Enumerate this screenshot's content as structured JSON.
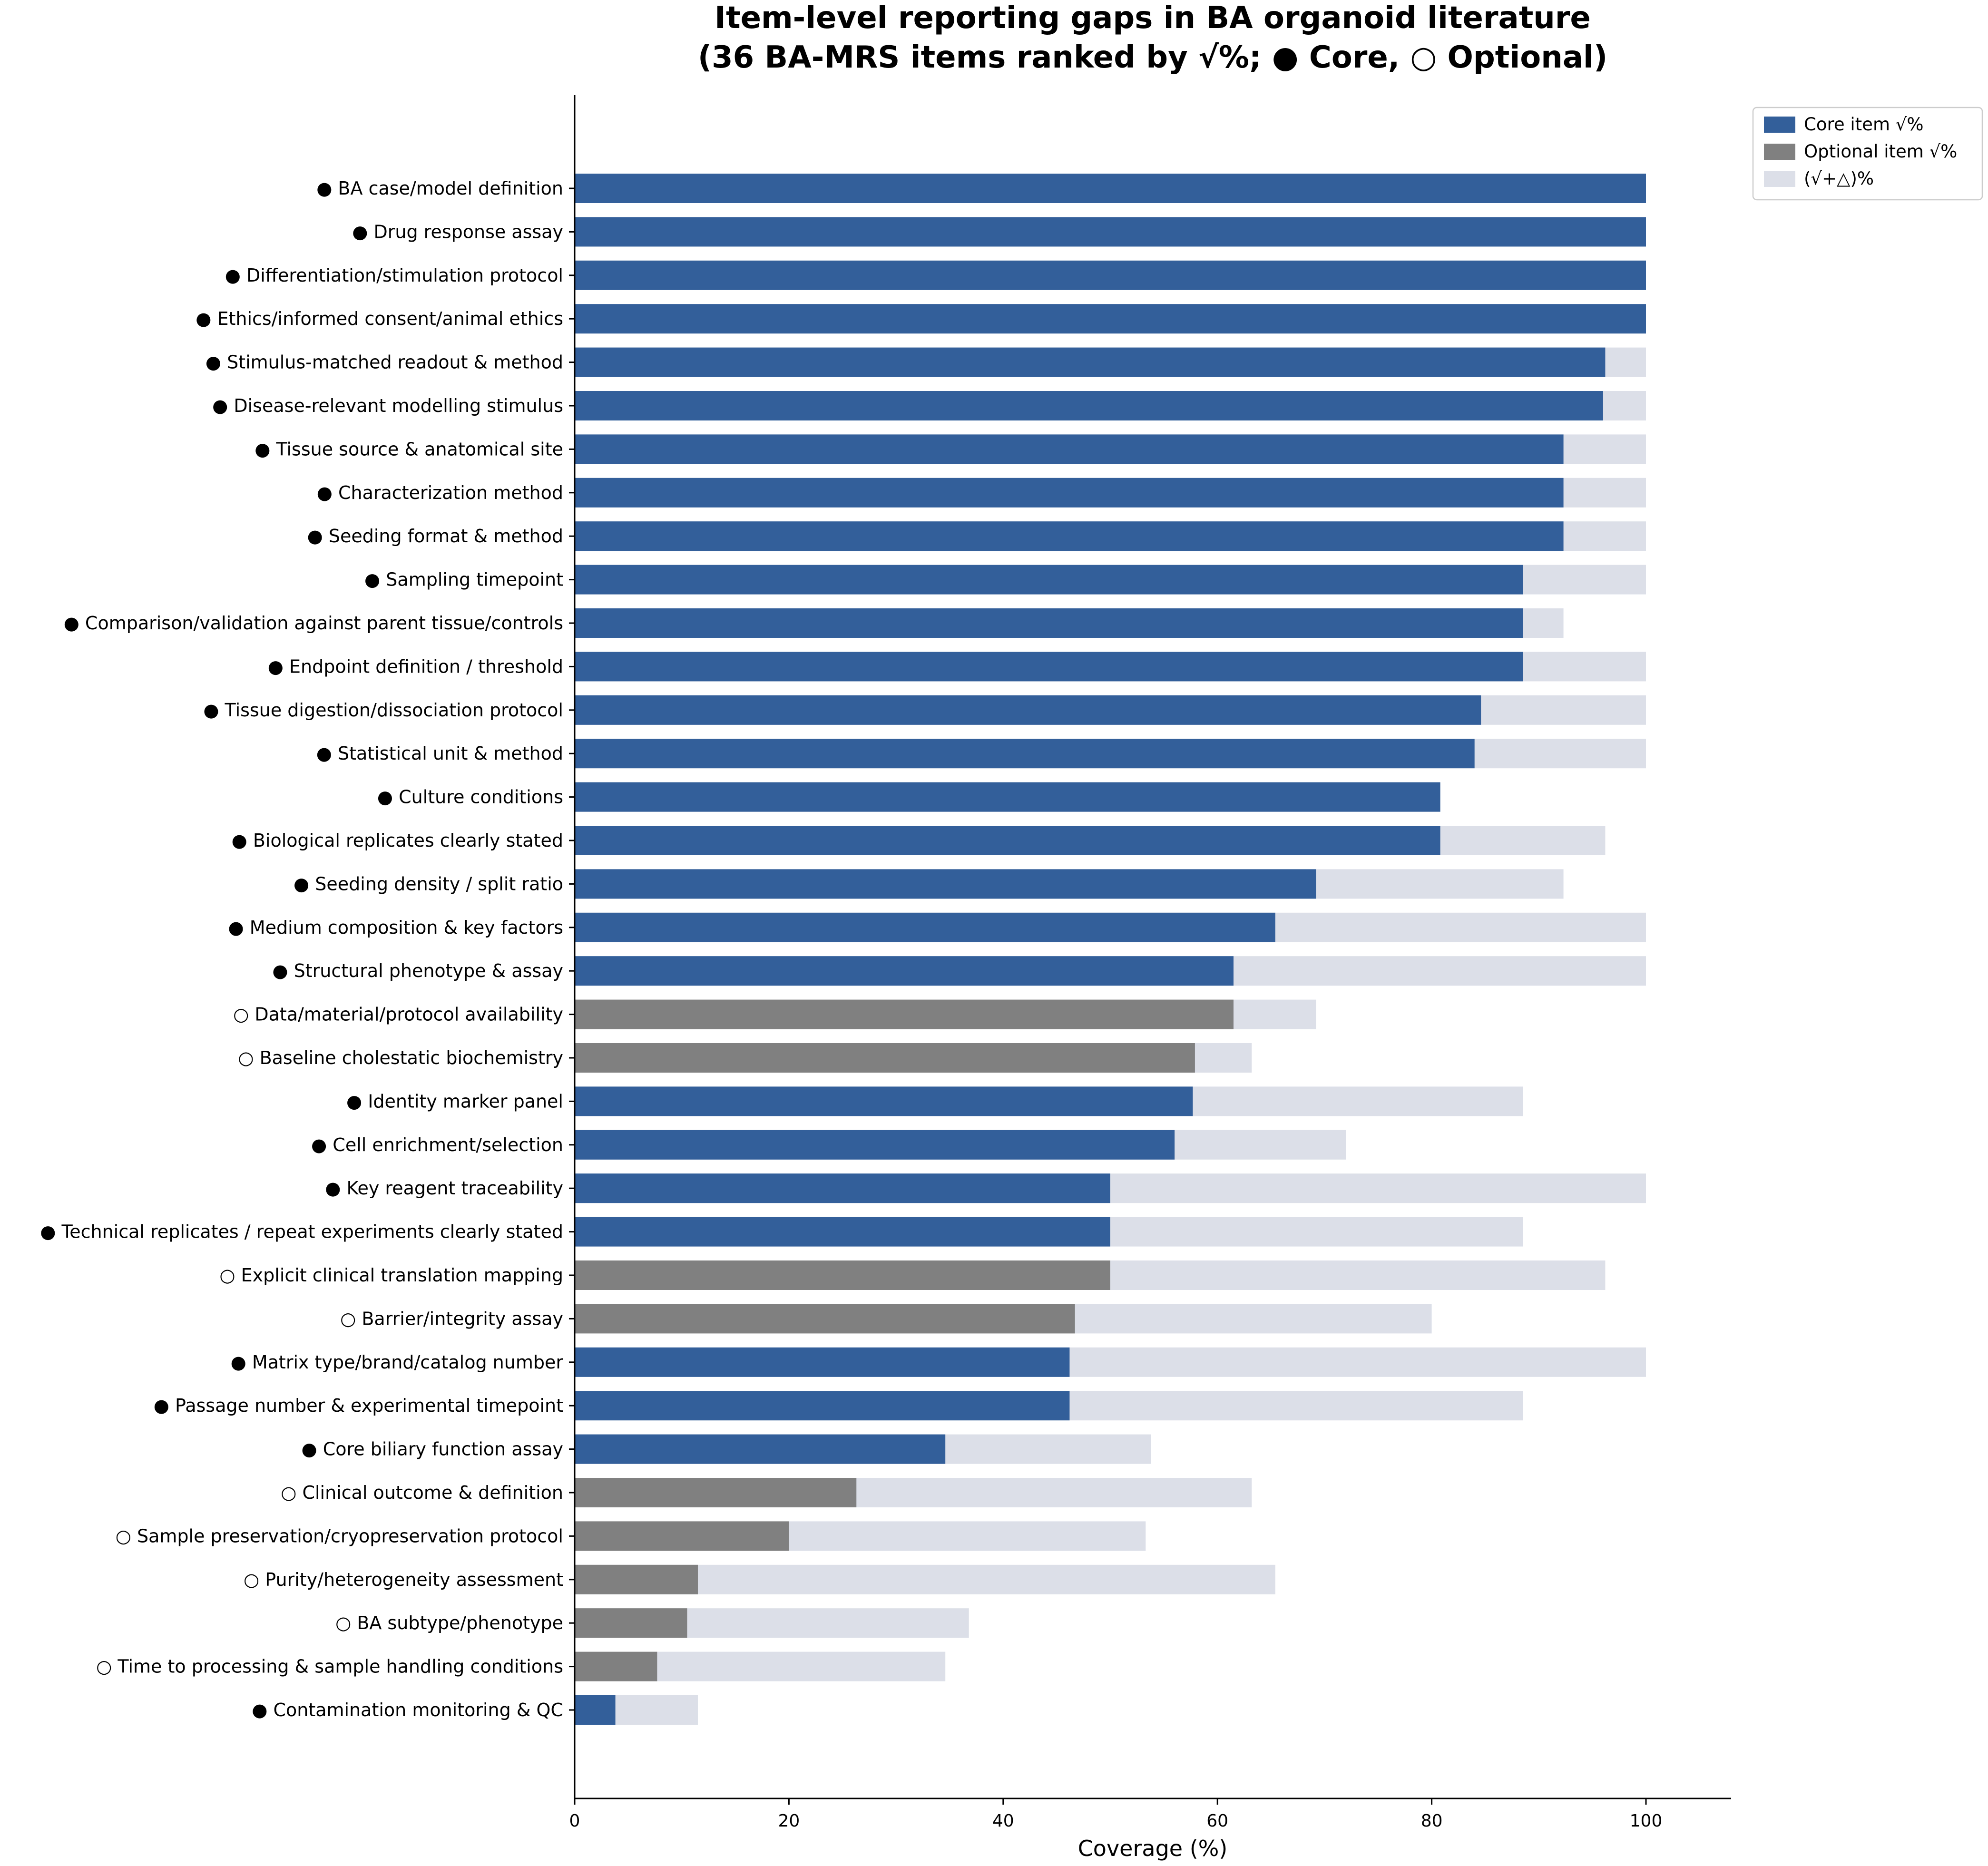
{
  "chart_data": {
    "type": "bar",
    "orientation": "horizontal",
    "stacked": "overlay",
    "title": "Item-level reporting gaps in BA organoid literature",
    "subtitle": "(36 BA-MRS items ranked by √%;  ● Core,  ○ Optional)",
    "xlabel": "Coverage (%)",
    "ylabel": "",
    "xlim": [
      0,
      108
    ],
    "xticks": [
      0,
      20,
      40,
      60,
      80,
      100
    ],
    "grid": false,
    "legend_position": "top-right",
    "colors": {
      "core": "#335f9a",
      "optional": "#808080",
      "combined": "#dcdfe8"
    },
    "legend": [
      {
        "key": "core",
        "label": "Core item √%"
      },
      {
        "key": "optional",
        "label": "Optional item √%"
      },
      {
        "key": "combined",
        "label": "(√+△)%"
      }
    ],
    "items": [
      {
        "label": "● BA case/model definition",
        "type": "core",
        "check": 100,
        "combined": 100
      },
      {
        "label": "● Drug response assay",
        "type": "core",
        "check": 100,
        "combined": 100
      },
      {
        "label": "● Differentiation/stimulation protocol",
        "type": "core",
        "check": 100,
        "combined": 100
      },
      {
        "label": "● Ethics/informed consent/animal ethics",
        "type": "core",
        "check": 100,
        "combined": 100
      },
      {
        "label": "● Stimulus-matched readout & method",
        "type": "core",
        "check": 96.2,
        "combined": 100
      },
      {
        "label": "● Disease-relevant modelling stimulus",
        "type": "core",
        "check": 96.0,
        "combined": 100
      },
      {
        "label": "● Tissue source & anatomical site",
        "type": "core",
        "check": 92.3,
        "combined": 100
      },
      {
        "label": "● Characterization method",
        "type": "core",
        "check": 92.3,
        "combined": 100
      },
      {
        "label": "● Seeding format & method",
        "type": "core",
        "check": 92.3,
        "combined": 100
      },
      {
        "label": "● Sampling timepoint",
        "type": "core",
        "check": 88.5,
        "combined": 100
      },
      {
        "label": "● Comparison/validation against parent tissue/controls",
        "type": "core",
        "check": 88.5,
        "combined": 92.3
      },
      {
        "label": "● Endpoint definition / threshold",
        "type": "core",
        "check": 88.5,
        "combined": 100
      },
      {
        "label": "● Tissue digestion/dissociation protocol",
        "type": "core",
        "check": 84.6,
        "combined": 100
      },
      {
        "label": "● Statistical unit & method",
        "type": "core",
        "check": 84.0,
        "combined": 100
      },
      {
        "label": "● Culture conditions",
        "type": "core",
        "check": 80.8,
        "combined": 80.8
      },
      {
        "label": "● Biological replicates clearly stated",
        "type": "core",
        "check": 80.8,
        "combined": 96.2
      },
      {
        "label": "● Seeding density / split ratio",
        "type": "core",
        "check": 69.2,
        "combined": 92.3
      },
      {
        "label": "● Medium composition & key factors",
        "type": "core",
        "check": 65.4,
        "combined": 100
      },
      {
        "label": "● Structural phenotype & assay",
        "type": "core",
        "check": 61.5,
        "combined": 100
      },
      {
        "label": "○ Data/material/protocol availability",
        "type": "optional",
        "check": 61.5,
        "combined": 69.2
      },
      {
        "label": "○ Baseline cholestatic biochemistry",
        "type": "optional",
        "check": 57.9,
        "combined": 63.2
      },
      {
        "label": "● Identity marker panel",
        "type": "core",
        "check": 57.7,
        "combined": 88.5
      },
      {
        "label": "● Cell enrichment/selection",
        "type": "core",
        "check": 56.0,
        "combined": 72.0
      },
      {
        "label": "● Key reagent traceability",
        "type": "core",
        "check": 50.0,
        "combined": 100
      },
      {
        "label": "● Technical replicates / repeat experiments clearly stated",
        "type": "core",
        "check": 50.0,
        "combined": 88.5
      },
      {
        "label": "○ Explicit clinical translation mapping",
        "type": "optional",
        "check": 50.0,
        "combined": 96.2
      },
      {
        "label": "○ Barrier/integrity assay",
        "type": "optional",
        "check": 46.7,
        "combined": 80.0
      },
      {
        "label": "● Matrix type/brand/catalog number",
        "type": "core",
        "check": 46.2,
        "combined": 100
      },
      {
        "label": "● Passage number & experimental timepoint",
        "type": "core",
        "check": 46.2,
        "combined": 88.5
      },
      {
        "label": "● Core biliary function assay",
        "type": "core",
        "check": 34.6,
        "combined": 53.8
      },
      {
        "label": "○ Clinical outcome & definition",
        "type": "optional",
        "check": 26.3,
        "combined": 63.2
      },
      {
        "label": "○ Sample preservation/cryopreservation protocol",
        "type": "optional",
        "check": 20.0,
        "combined": 53.3
      },
      {
        "label": "○ Purity/heterogeneity assessment",
        "type": "optional",
        "check": 11.5,
        "combined": 65.4
      },
      {
        "label": "○ BA subtype/phenotype",
        "type": "optional",
        "check": 10.5,
        "combined": 36.8
      },
      {
        "label": "○ Time to processing & sample handling conditions",
        "type": "optional",
        "check": 7.7,
        "combined": 34.6
      },
      {
        "label": "● Contamination monitoring & QC",
        "type": "core",
        "check": 3.8,
        "combined": 11.5
      }
    ]
  }
}
